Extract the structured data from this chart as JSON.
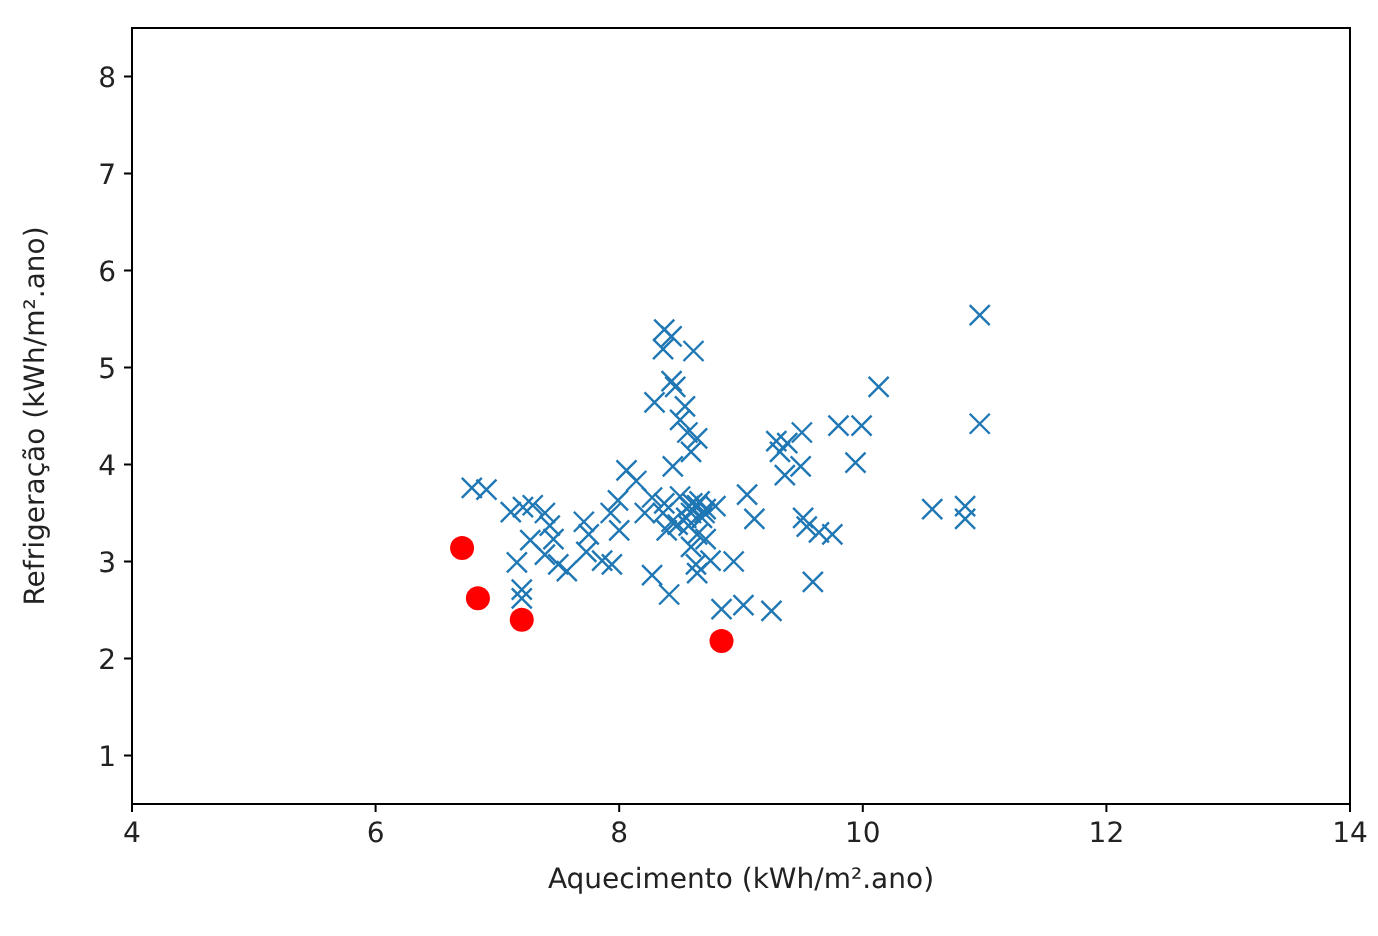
{
  "chart_data": {
    "type": "scatter",
    "xlabel": "Aquecimento (kWh/m².ano)",
    "ylabel": "Refrigeração (kWh/m².ano)",
    "xlim": [
      4,
      14
    ],
    "ylim": [
      0.5,
      8.5
    ],
    "xticks": [
      4,
      6,
      8,
      10,
      12,
      14
    ],
    "yticks": [
      1,
      2,
      3,
      4,
      5,
      6,
      7,
      8
    ],
    "grid": false,
    "series": [
      {
        "color": "#1f77b4",
        "marker": "cross",
        "x": [
          6.79,
          6.91,
          7.11,
          7.21,
          7.29,
          7.27,
          7.16,
          7.2,
          7.2,
          7.39,
          7.43,
          7.46,
          7.39,
          7.5,
          7.57,
          7.71,
          7.75,
          7.73,
          7.86,
          7.94,
          7.93,
          8.0,
          7.99,
          8.06,
          8.14,
          8.21,
          8.27,
          8.29,
          8.27,
          8.37,
          8.36,
          8.39,
          8.41,
          8.43,
          8.37,
          8.43,
          8.36,
          8.61,
          8.43,
          8.46,
          8.54,
          8.5,
          8.56,
          8.64,
          8.59,
          8.44,
          8.5,
          8.57,
          8.59,
          8.64,
          8.68,
          8.71,
          8.57,
          8.64,
          8.59,
          8.63,
          8.64,
          8.75,
          8.71,
          8.79,
          8.94,
          8.84,
          9.02,
          9.25,
          9.05,
          9.11,
          9.29,
          9.32,
          9.38,
          9.36,
          9.5,
          9.49,
          9.51,
          9.54,
          9.59,
          9.64,
          9.75,
          9.8,
          9.99,
          9.94,
          10.13,
          10.57,
          10.84,
          10.84,
          10.96,
          10.96,
          8.6,
          8.66,
          8.7,
          8.55,
          8.48
        ],
        "values": [
          3.76,
          3.74,
          3.51,
          3.56,
          3.58,
          3.22,
          2.99,
          2.71,
          2.62,
          3.5,
          3.37,
          3.23,
          3.07,
          2.97,
          2.9,
          3.41,
          3.28,
          3.1,
          3.01,
          2.97,
          3.5,
          3.32,
          3.63,
          3.94,
          3.83,
          3.5,
          3.66,
          4.64,
          2.86,
          3.6,
          3.5,
          3.32,
          2.66,
          3.41,
          5.39,
          5.32,
          5.19,
          5.17,
          4.86,
          4.8,
          4.6,
          4.46,
          4.33,
          4.27,
          4.13,
          3.98,
          3.67,
          3.57,
          3.5,
          3.58,
          3.45,
          3.54,
          3.37,
          3.28,
          3.15,
          2.97,
          2.88,
          3.01,
          3.23,
          3.57,
          3.0,
          2.51,
          2.55,
          2.49,
          3.69,
          3.44,
          4.24,
          4.13,
          4.22,
          3.89,
          4.33,
          3.98,
          3.45,
          3.36,
          2.79,
          3.3,
          3.28,
          4.4,
          4.4,
          4.02,
          4.8,
          3.54,
          3.57,
          3.44,
          5.54,
          4.42,
          3.6,
          3.62,
          3.5,
          3.45,
          3.38
        ]
      },
      {
        "color": "#ff0000",
        "marker": "circle",
        "x": [
          6.71,
          6.84,
          7.2,
          8.84
        ],
        "values": [
          3.14,
          2.62,
          2.4,
          2.18
        ]
      }
    ]
  }
}
